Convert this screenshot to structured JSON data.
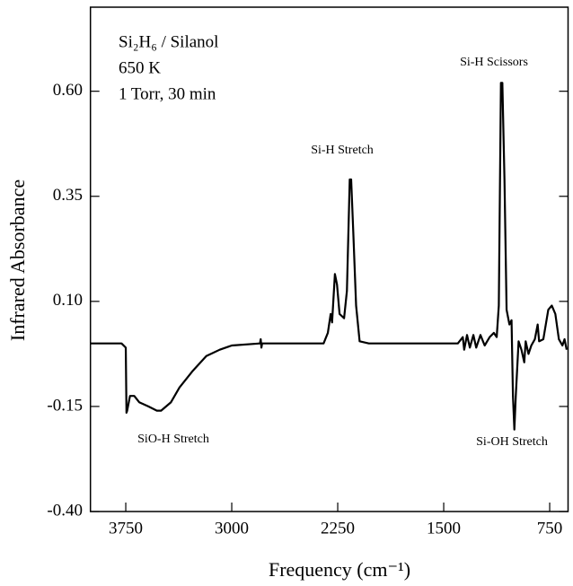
{
  "chart_data": {
    "type": "line",
    "text_lines": [
      "Si₂H₆ / Silanol",
      "650 K",
      "1 Torr, 30 min"
    ],
    "xlabel": "Frequency (cm⁻¹)",
    "ylabel": "Infrared Absorbance",
    "annotations": [
      "Si-H Scissors",
      "Si-H Stretch",
      "SiO-H Stretch",
      "Si-OH Stretch"
    ],
    "x": [
      4000,
      3780,
      3750,
      3745,
      3740,
      3720,
      3690,
      3655,
      3590,
      3530,
      3500,
      3430,
      3370,
      3275,
      3180,
      3085,
      3000,
      2800,
      2795,
      2790,
      2785,
      2545,
      2350,
      2320,
      2300,
      2290,
      2270,
      2255,
      2237,
      2205,
      2185,
      2165,
      2155,
      2140,
      2120,
      2095,
      2030,
      1840,
      1780,
      1650,
      1400,
      1365,
      1355,
      1335,
      1315,
      1290,
      1270,
      1240,
      1210,
      1175,
      1145,
      1125,
      1110,
      1095,
      1085,
      1070,
      1055,
      1035,
      1020,
      1010,
      1000,
      990,
      970,
      950,
      930,
      920,
      900,
      880,
      855,
      835,
      825,
      795,
      760,
      735,
      710,
      685,
      660,
      645,
      630
    ],
    "values": [
      0,
      0,
      -0.01,
      -0.165,
      -0.16,
      -0.125,
      -0.125,
      -0.14,
      -0.15,
      -0.16,
      -0.16,
      -0.14,
      -0.105,
      -0.065,
      -0.03,
      -0.015,
      -0.005,
      0,
      0.01,
      -0.01,
      0,
      0,
      0,
      0.025,
      0.07,
      0.05,
      0.165,
      0.14,
      0.07,
      0.06,
      0.125,
      0.39,
      0.39,
      0.265,
      0.09,
      0.005,
      0,
      0,
      0,
      0,
      0,
      0.015,
      -0.015,
      0.02,
      -0.01,
      0.02,
      -0.01,
      0.02,
      -0.005,
      0.015,
      0.025,
      0.015,
      0.09,
      0.62,
      0.62,
      0.39,
      0.08,
      0.045,
      0.055,
      -0.125,
      -0.205,
      -0.125,
      0.005,
      -0.015,
      -0.045,
      0.005,
      -0.025,
      -0.005,
      0.01,
      0.045,
      0.005,
      0.01,
      0.08,
      0.09,
      0.07,
      0.01,
      -0.005,
      0.01,
      -0.015
    ],
    "color": "#000000",
    "xlim": [
      4000,
      620
    ],
    "ylim": [
      -0.4,
      0.8
    ],
    "xticks": [
      3750,
      3000,
      2250,
      1500,
      750
    ],
    "yticks": [
      {
        "value": 0.6,
        "label": "0.60"
      },
      0.35,
      {
        "value": 0.1,
        "label": "0.10"
      },
      -0.15,
      {
        "value": -0.4,
        "label": "-0.40"
      }
    ]
  }
}
